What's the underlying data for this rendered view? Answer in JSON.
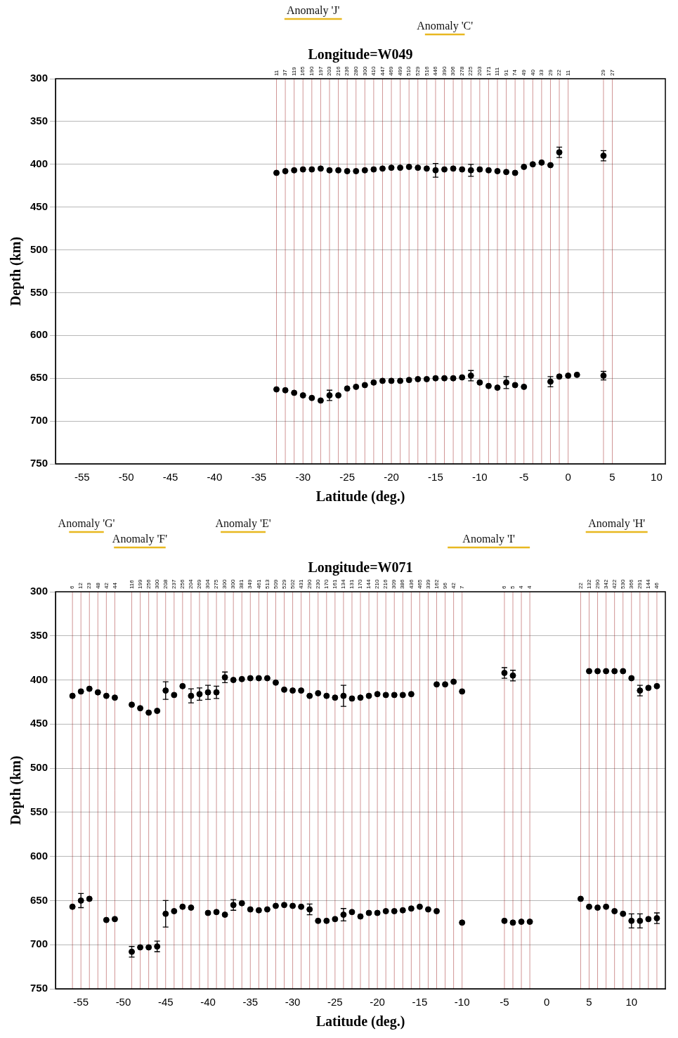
{
  "chart_data": [
    {
      "type": "scatter",
      "title": "Longitude=W049",
      "xlabel": "Latitude (deg.)",
      "ylabel": "Depth (km)",
      "xlim": [
        -58,
        11
      ],
      "xticks": [
        -55,
        -50,
        -45,
        -40,
        -35,
        -30,
        -25,
        -20,
        -15,
        -10,
        -5,
        0,
        5,
        10
      ],
      "ylim": [
        750,
        300
      ],
      "yticks": [
        300,
        350,
        400,
        450,
        500,
        550,
        600,
        650,
        700,
        750
      ],
      "grid": true,
      "annotations": [
        {
          "text": "Anomaly 'J'",
          "x": [
            -32.1,
            -25.6
          ]
        },
        {
          "text": "Anomaly 'C'",
          "x": [
            -16.2,
            -11.7
          ]
        }
      ],
      "station_counts": {
        "x": [
          -33,
          -32,
          -31,
          -30,
          -29,
          -28,
          -27,
          -26,
          -25,
          -24,
          -23,
          -22,
          -21,
          -20,
          -19,
          -18,
          -17,
          -16,
          -15,
          -14,
          -13,
          -12,
          -11,
          -10,
          -9,
          -8,
          -7,
          -6,
          -5,
          -4,
          -3,
          -2,
          -1,
          0,
          4,
          5
        ],
        "values": [
          11,
          37,
          119,
          165,
          190,
          197,
          203,
          216,
          236,
          280,
          300,
          410,
          447,
          469,
          499,
          510,
          529,
          516,
          446,
          390,
          306,
          278,
          225,
          203,
          171,
          111,
          91,
          74,
          49,
          40,
          33,
          29,
          22,
          11,
          29,
          27
        ]
      },
      "series": [
        {
          "color": "#000000",
          "marker": "circle",
          "x": [
            -33,
            -32,
            -31,
            -30,
            -29,
            -28,
            -27,
            -26,
            -25,
            -24,
            -23,
            -22,
            -21,
            -20,
            -19,
            -18,
            -17,
            -16,
            -15,
            -14,
            -13,
            -12,
            -11,
            -10,
            -9,
            -8,
            -7,
            -6,
            -5,
            -4,
            -3,
            -2,
            -1,
            4
          ],
          "values": [
            410,
            408,
            407,
            406,
            406,
            405,
            407,
            407,
            408,
            408,
            407,
            406,
            405,
            404,
            404,
            403,
            404,
            405,
            407,
            406,
            405,
            406,
            407,
            406,
            407,
            408,
            409,
            410,
            403,
            400,
            398,
            401,
            386,
            390
          ],
          "errors": [
            null,
            null,
            null,
            null,
            null,
            null,
            null,
            null,
            null,
            null,
            null,
            null,
            null,
            null,
            null,
            null,
            null,
            null,
            8,
            null,
            null,
            null,
            7,
            null,
            null,
            null,
            null,
            null,
            null,
            null,
            null,
            null,
            6,
            6
          ]
        },
        {
          "color": "#000000",
          "marker": "circle",
          "x": [
            -33,
            -32,
            -31,
            -30,
            -29,
            -28,
            -27,
            -26,
            -25,
            -24,
            -23,
            -22,
            -21,
            -20,
            -19,
            -18,
            -17,
            -16,
            -15,
            -14,
            -13,
            -12,
            -11,
            -10,
            -9,
            -8,
            -7,
            -6,
            -5,
            -2,
            -1,
            0,
            1,
            4
          ],
          "values": [
            663,
            664,
            667,
            670,
            673,
            676,
            670,
            670,
            662,
            660,
            658,
            655,
            653,
            653,
            653,
            652,
            651,
            651,
            650,
            650,
            650,
            649,
            647,
            655,
            659,
            661,
            655,
            658,
            660,
            654,
            648,
            647,
            646,
            647
          ],
          "errors": [
            null,
            null,
            null,
            null,
            null,
            null,
            6,
            null,
            null,
            null,
            null,
            null,
            null,
            null,
            null,
            null,
            null,
            null,
            null,
            null,
            null,
            null,
            6,
            null,
            null,
            null,
            7,
            null,
            null,
            6,
            null,
            null,
            null,
            5
          ]
        }
      ]
    },
    {
      "type": "scatter",
      "title": "Longitude=W071",
      "xlabel": "Latitude (deg.)",
      "ylabel": "Depth (km)",
      "xlim": [
        -58,
        14
      ],
      "xticks": [
        -55,
        -50,
        -45,
        -40,
        -35,
        -30,
        -25,
        -20,
        -15,
        -10,
        -5,
        0,
        5,
        10
      ],
      "ylim": [
        750,
        300
      ],
      "yticks": [
        300,
        350,
        400,
        450,
        500,
        550,
        600,
        650,
        700,
        750
      ],
      "grid": true,
      "annotations": [
        {
          "text": "Anomaly 'G'",
          "x": [
            -56.4,
            -52.3
          ]
        },
        {
          "text": "Anomaly 'F'",
          "x": [
            -51.1,
            -45
          ]
        },
        {
          "text": "Anomaly 'E'",
          "x": [
            -38.5,
            -33.2
          ]
        },
        {
          "text": "Anomaly 'I'",
          "x": [
            -11.7,
            -2
          ]
        },
        {
          "text": "Anomaly 'H'",
          "x": [
            4.6,
            11.9
          ]
        }
      ],
      "station_counts": {
        "x": [
          -56,
          -55,
          -54,
          -53,
          -52,
          -51,
          -49,
          -48,
          -47,
          -46,
          -45,
          -44,
          -43,
          -42,
          -41,
          -40,
          -39,
          -38,
          -37,
          -36,
          -35,
          -34,
          -33,
          -32,
          -31,
          -30,
          -29,
          -28,
          -27,
          -26,
          -25,
          -24,
          -23,
          -22,
          -21,
          -20,
          -19,
          -18,
          -17,
          -16,
          -15,
          -14,
          -13,
          -12,
          -11,
          -10,
          -5,
          -4,
          -3,
          -2,
          4,
          5,
          6,
          7,
          8,
          9,
          10,
          11,
          12,
          13
        ],
        "values": [
          6,
          12,
          23,
          48,
          42,
          44,
          116,
          199,
          256,
          300,
          208,
          237,
          256,
          204,
          269,
          304,
          275,
          300,
          300,
          381,
          349,
          461,
          513,
          509,
          529,
          502,
          431,
          290,
          230,
          170,
          161,
          134,
          131,
          170,
          144,
          210,
          216,
          309,
          386,
          436,
          465,
          339,
          162,
          96,
          42,
          7,
          6,
          5,
          4,
          4,
          22,
          132,
          290,
          342,
          422,
          530,
          366,
          291,
          144,
          46
        ]
      },
      "series": [
        {
          "color": "#000000",
          "marker": "circle",
          "x": [
            -56,
            -55,
            -54,
            -53,
            -52,
            -51,
            -49,
            -48,
            -47,
            -46,
            -45,
            -44,
            -43,
            -42,
            -41,
            -40,
            -39,
            -38,
            -37,
            -36,
            -35,
            -34,
            -33,
            -32,
            -31,
            -30,
            -29,
            -28,
            -27,
            -26,
            -25,
            -24,
            -23,
            -22,
            -21,
            -20,
            -19,
            -18,
            -17,
            -16,
            -13,
            -12,
            -11,
            -10,
            -5,
            -4,
            5,
            6,
            7,
            8,
            9,
            10,
            11,
            12,
            13
          ],
          "values": [
            418,
            413,
            410,
            414,
            418,
            420,
            428,
            432,
            437,
            435,
            412,
            417,
            407,
            418,
            416,
            414,
            414,
            397,
            400,
            399,
            398,
            398,
            398,
            403,
            411,
            412,
            412,
            418,
            415,
            418,
            420,
            418,
            421,
            420,
            418,
            416,
            417,
            417,
            417,
            416,
            405,
            405,
            402,
            413,
            392,
            395,
            390,
            390,
            390,
            390,
            390,
            398,
            412,
            409,
            407
          ],
          "errors": [
            null,
            null,
            null,
            null,
            null,
            null,
            null,
            null,
            null,
            null,
            10,
            null,
            null,
            8,
            7,
            8,
            7,
            6,
            null,
            null,
            null,
            null,
            null,
            null,
            null,
            null,
            null,
            null,
            null,
            null,
            null,
            12,
            null,
            null,
            null,
            null,
            null,
            null,
            null,
            null,
            null,
            null,
            null,
            null,
            6,
            6,
            null,
            null,
            null,
            null,
            null,
            null,
            6,
            null,
            null
          ]
        },
        {
          "color": "#000000",
          "marker": "circle",
          "x": [
            -56,
            -55,
            -54,
            -52,
            -51,
            -49,
            -48,
            -47,
            -46,
            -45,
            -44,
            -43,
            -42,
            -40,
            -39,
            -38,
            -37,
            -36,
            -35,
            -34,
            -33,
            -32,
            -31,
            -30,
            -29,
            -28,
            -27,
            -26,
            -25,
            -24,
            -23,
            -22,
            -21,
            -20,
            -19,
            -18,
            -17,
            -16,
            -15,
            -14,
            -13,
            -10,
            -5,
            -4,
            -3,
            -2,
            4,
            5,
            6,
            7,
            8,
            9,
            10,
            11,
            12,
            13
          ],
          "values": [
            657,
            650,
            648,
            672,
            671,
            708,
            703,
            703,
            702,
            665,
            662,
            657,
            658,
            664,
            663,
            666,
            655,
            653,
            660,
            661,
            660,
            656,
            655,
            656,
            657,
            660,
            673,
            673,
            671,
            666,
            663,
            668,
            664,
            664,
            662,
            662,
            661,
            659,
            657,
            660,
            662,
            675,
            673,
            675,
            674,
            674,
            648,
            657,
            658,
            657,
            662,
            665,
            673,
            673,
            671,
            670
          ],
          "errors": [
            null,
            8,
            null,
            null,
            null,
            6,
            null,
            null,
            6,
            15,
            null,
            null,
            null,
            null,
            null,
            null,
            6,
            null,
            null,
            null,
            null,
            null,
            null,
            null,
            null,
            6,
            null,
            null,
            null,
            7,
            null,
            null,
            null,
            null,
            null,
            null,
            null,
            null,
            null,
            null,
            null,
            null,
            null,
            null,
            null,
            null,
            null,
            null,
            null,
            null,
            null,
            null,
            8,
            8,
            null,
            6
          ]
        }
      ]
    }
  ]
}
